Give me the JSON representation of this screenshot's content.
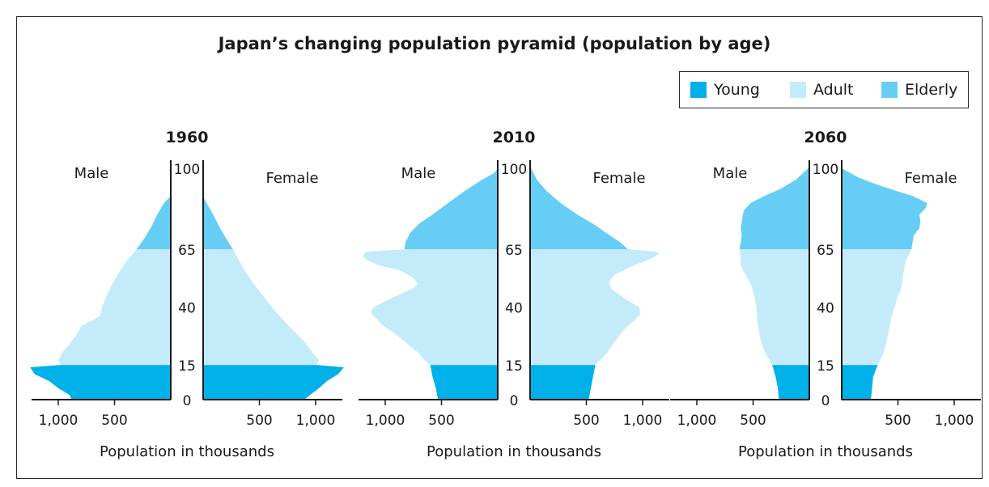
{
  "title": "Japan’s changing population pyramid (population by age)",
  "legend": [
    {
      "label": "Young",
      "color": "#00b0e8"
    },
    {
      "label": "Adult",
      "color": "#c4ebfa"
    },
    {
      "label": "Elderly",
      "color": "#66cef4"
    }
  ],
  "chart_data": [
    {
      "type": "area",
      "title": "1960",
      "left_label": "Male",
      "right_label": "Female",
      "xlabel": "Population in thousands",
      "age_ticks": [
        "0",
        "15",
        "40",
        "65",
        "100"
      ],
      "pop_ticks_left": [
        "1,000",
        "500"
      ],
      "pop_ticks_right": [
        "500",
        "1,000"
      ],
      "xlim": [
        0,
        1250
      ],
      "ylim": [
        0,
        100
      ],
      "bands": {
        "young": [
          0,
          15
        ],
        "adult": [
          15,
          65
        ],
        "elderly": [
          65,
          100
        ]
      },
      "male": [
        [
          0,
          880
        ],
        [
          2,
          900
        ],
        [
          5,
          1000
        ],
        [
          8,
          1080
        ],
        [
          11,
          1210
        ],
        [
          14,
          1250
        ],
        [
          15,
          980
        ],
        [
          17,
          1000
        ],
        [
          20,
          970
        ],
        [
          24,
          900
        ],
        [
          28,
          840
        ],
        [
          32,
          790
        ],
        [
          36,
          630
        ],
        [
          40,
          610
        ],
        [
          45,
          570
        ],
        [
          50,
          520
        ],
        [
          55,
          460
        ],
        [
          60,
          390
        ],
        [
          65,
          305
        ],
        [
          70,
          230
        ],
        [
          75,
          170
        ],
        [
          80,
          120
        ],
        [
          85,
          60
        ],
        [
          88,
          0
        ]
      ],
      "female": [
        [
          0,
          900
        ],
        [
          2,
          950
        ],
        [
          5,
          1030
        ],
        [
          8,
          1100
        ],
        [
          11,
          1200
        ],
        [
          14,
          1250
        ],
        [
          15,
          1005
        ],
        [
          17,
          1030
        ],
        [
          20,
          980
        ],
        [
          25,
          900
        ],
        [
          30,
          800
        ],
        [
          35,
          700
        ],
        [
          40,
          610
        ],
        [
          45,
          530
        ],
        [
          50,
          450
        ],
        [
          55,
          380
        ],
        [
          60,
          320
        ],
        [
          65,
          265
        ],
        [
          70,
          200
        ],
        [
          75,
          140
        ],
        [
          80,
          90
        ],
        [
          85,
          30
        ],
        [
          88,
          0
        ]
      ]
    },
    {
      "type": "area",
      "title": "2010",
      "left_label": "Male",
      "right_label": "Female",
      "xlabel": "Population in thousands",
      "age_ticks": [
        "0",
        "15",
        "40",
        "65",
        "100"
      ],
      "pop_ticks_left": [
        "1,000",
        "500"
      ],
      "pop_ticks_right": [
        "500",
        "1,000"
      ],
      "xlim": [
        0,
        1250
      ],
      "ylim": [
        0,
        100
      ],
      "bands": {
        "young": [
          0,
          15
        ],
        "adult": [
          15,
          65
        ],
        "elderly": [
          65,
          100
        ]
      },
      "male": [
        [
          0,
          530
        ],
        [
          5,
          550
        ],
        [
          10,
          580
        ],
        [
          15,
          600
        ],
        [
          17,
          650
        ],
        [
          20,
          700
        ],
        [
          24,
          800
        ],
        [
          28,
          900
        ],
        [
          32,
          1020
        ],
        [
          36,
          1100
        ],
        [
          38,
          1130
        ],
        [
          40,
          1100
        ],
        [
          44,
          940
        ],
        [
          48,
          760
        ],
        [
          50,
          710
        ],
        [
          53,
          760
        ],
        [
          56,
          880
        ],
        [
          58,
          1050
        ],
        [
          60,
          1150
        ],
        [
          62,
          1200
        ],
        [
          64,
          1170
        ],
        [
          65,
          830
        ],
        [
          68,
          820
        ],
        [
          72,
          780
        ],
        [
          76,
          700
        ],
        [
          80,
          580
        ],
        [
          85,
          440
        ],
        [
          90,
          300
        ],
        [
          95,
          140
        ],
        [
          98,
          30
        ],
        [
          100,
          0
        ]
      ],
      "female": [
        [
          0,
          520
        ],
        [
          5,
          540
        ],
        [
          10,
          560
        ],
        [
          15,
          580
        ],
        [
          17,
          620
        ],
        [
          20,
          680
        ],
        [
          25,
          750
        ],
        [
          30,
          830
        ],
        [
          34,
          920
        ],
        [
          37,
          980
        ],
        [
          40,
          970
        ],
        [
          44,
          830
        ],
        [
          48,
          720
        ],
        [
          51,
          700
        ],
        [
          54,
          750
        ],
        [
          58,
          920
        ],
        [
          61,
          1080
        ],
        [
          63,
          1150
        ],
        [
          64,
          1120
        ],
        [
          65,
          870
        ],
        [
          68,
          800
        ],
        [
          72,
          680
        ],
        [
          76,
          560
        ],
        [
          80,
          420
        ],
        [
          85,
          270
        ],
        [
          90,
          150
        ],
        [
          95,
          60
        ],
        [
          100,
          10
        ]
      ]
    },
    {
      "type": "area",
      "title": "2060",
      "left_label": "Male",
      "right_label": "Female",
      "xlabel": "Population in thousands",
      "age_ticks": [
        "0",
        "15",
        "40",
        "65",
        "100"
      ],
      "pop_ticks_left": [
        "1,000",
        "500"
      ],
      "pop_ticks_right": [
        "500",
        "1,000"
      ],
      "xlim": [
        0,
        1250
      ],
      "ylim": [
        0,
        100
      ],
      "bands": {
        "young": [
          0,
          15
        ],
        "adult": [
          15,
          65
        ],
        "elderly": [
          65,
          100
        ]
      },
      "male": [
        [
          0,
          270
        ],
        [
          5,
          280
        ],
        [
          10,
          300
        ],
        [
          15,
          330
        ],
        [
          20,
          390
        ],
        [
          25,
          430
        ],
        [
          30,
          450
        ],
        [
          35,
          465
        ],
        [
          40,
          470
        ],
        [
          45,
          490
        ],
        [
          50,
          520
        ],
        [
          55,
          580
        ],
        [
          58,
          610
        ],
        [
          62,
          610
        ],
        [
          65,
          620
        ],
        [
          68,
          610
        ],
        [
          71,
          600
        ],
        [
          74,
          610
        ],
        [
          77,
          600
        ],
        [
          80,
          590
        ],
        [
          82,
          580
        ],
        [
          85,
          520
        ],
        [
          88,
          400
        ],
        [
          91,
          260
        ],
        [
          95,
          120
        ],
        [
          100,
          10
        ]
      ],
      "female": [
        [
          0,
          260
        ],
        [
          5,
          270
        ],
        [
          10,
          280
        ],
        [
          15,
          320
        ],
        [
          20,
          370
        ],
        [
          25,
          400
        ],
        [
          30,
          420
        ],
        [
          35,
          440
        ],
        [
          40,
          470
        ],
        [
          45,
          500
        ],
        [
          48,
          530
        ],
        [
          52,
          540
        ],
        [
          55,
          550
        ],
        [
          60,
          570
        ],
        [
          65,
          620
        ],
        [
          68,
          630
        ],
        [
          71,
          640
        ],
        [
          74,
          690
        ],
        [
          77,
          700
        ],
        [
          80,
          690
        ],
        [
          83,
          750
        ],
        [
          85,
          760
        ],
        [
          88,
          630
        ],
        [
          90,
          500
        ],
        [
          93,
          310
        ],
        [
          96,
          150
        ],
        [
          100,
          0
        ]
      ]
    }
  ],
  "axis_label": "Population in thousands"
}
